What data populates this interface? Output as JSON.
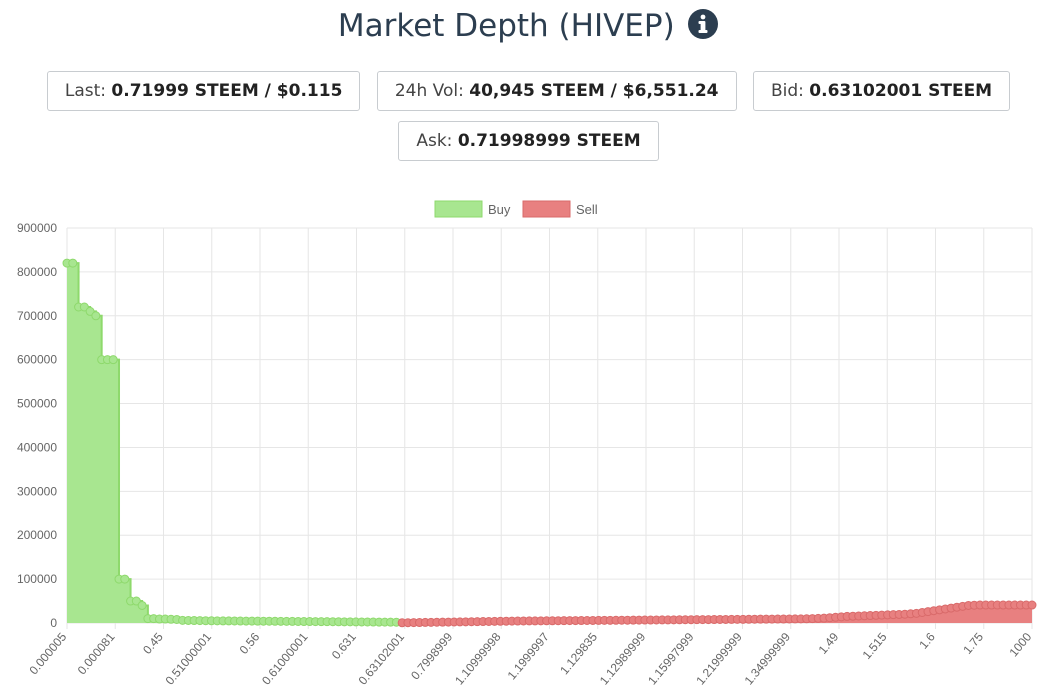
{
  "header": {
    "title": "Market Depth (HIVEP)",
    "info_icon": "info-circle-icon"
  },
  "stats": {
    "last_label": "Last:",
    "last_value": "0.71999 STEEM / $0.115",
    "vol_label": "24h Vol:",
    "vol_value": "40,945 STEEM / $6,551.24",
    "bid_label": "Bid:",
    "bid_value": "0.63102001 STEEM",
    "ask_label": "Ask:",
    "ask_value": "0.71998999 STEEM"
  },
  "colors": {
    "buy_fill": "#a8e690",
    "buy_line": "#8ed96c",
    "sell_fill": "#e88080",
    "sell_line": "#d96a6a",
    "grid": "#e6e6e6",
    "text": "#666666"
  },
  "chart_data": {
    "type": "area",
    "legend": [
      "Buy",
      "Sell"
    ],
    "legend_position": "top-center",
    "grid": true,
    "ylim": [
      0,
      900000
    ],
    "y_ticks": [
      0,
      100000,
      200000,
      300000,
      400000,
      500000,
      600000,
      700000,
      800000,
      900000
    ],
    "x_tick_labels": [
      "0.000005",
      "0.000081",
      "0.45",
      "0.51000001",
      "0.56",
      "0.61000001",
      "0.631",
      "0.63102001",
      "0.7998999",
      "1.10999998",
      "1.1999997",
      "1.129835",
      "1.12989999",
      "1.15997999",
      "1.21999999",
      "1.34999999",
      "1.49",
      "1.515",
      "1.6",
      "1.75",
      "1000"
    ],
    "series": [
      {
        "name": "Buy",
        "values": [
          820000,
          820000,
          720000,
          720000,
          710000,
          700000,
          600000,
          600000,
          600000,
          100000,
          100000,
          50000,
          50000,
          40000,
          10000,
          10000,
          9000,
          9000,
          8500,
          8000,
          6000,
          5800,
          5600,
          5400,
          5200,
          5000,
          4900,
          4800,
          4700,
          4600,
          4500,
          4400,
          4300,
          4200,
          4100,
          4000,
          3900,
          3800,
          3700,
          3600,
          3500,
          3400,
          3300,
          3200,
          3100,
          3000,
          2900,
          2800,
          2700,
          2600,
          2500,
          2400,
          2300,
          2200,
          2100,
          2000,
          1900,
          1800
        ]
      },
      {
        "name": "Sell",
        "values": [
          500,
          700,
          900,
          1100,
          1300,
          1500,
          1700,
          1900,
          2100,
          2300,
          2500,
          2700,
          2900,
          3100,
          3300,
          3500,
          3700,
          3900,
          4100,
          4300,
          4500,
          4600,
          4700,
          4800,
          4900,
          5000,
          5100,
          5200,
          5300,
          5400,
          5500,
          5600,
          5700,
          5800,
          5900,
          6000,
          6100,
          6200,
          6300,
          6400,
          6500,
          6600,
          6700,
          6800,
          6900,
          7000,
          7100,
          7200,
          7300,
          7400,
          7500,
          7600,
          7700,
          7800,
          7900,
          8000,
          8100,
          8200,
          8300,
          8400,
          8500,
          8600,
          8700,
          8800,
          8900,
          9000,
          9100,
          9200,
          9300,
          9400,
          9600,
          10000,
          10500,
          11000,
          12000,
          13000,
          14000,
          15000,
          15500,
          16000,
          16500,
          17000,
          17500,
          18000,
          18500,
          19000,
          19500,
          20000,
          21000,
          22000,
          24000,
          26000,
          28000,
          30000,
          32000,
          34000,
          36000,
          38000,
          40000,
          40500,
          41000,
          41000,
          41000,
          41000,
          41000,
          41000,
          41000,
          41000,
          41000,
          41000
        ]
      }
    ]
  }
}
